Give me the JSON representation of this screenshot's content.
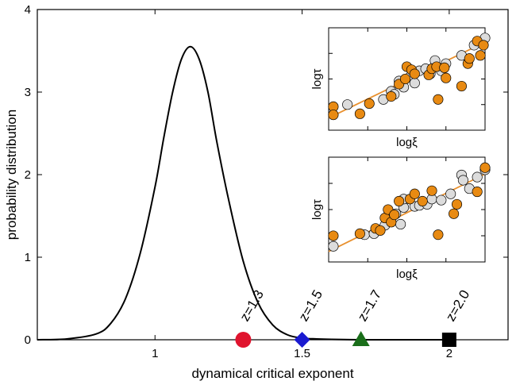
{
  "chart_data": {
    "type": "line",
    "xlabel": "dynamical critical exponent",
    "ylabel": "probability distribution",
    "xlim": [
      0.6,
      2.2
    ],
    "ylim": [
      0,
      4
    ],
    "x_ticks": [
      1,
      1.5,
      2
    ],
    "x_tick_labels": [
      "1",
      "1.5",
      "2"
    ],
    "y_ticks": [
      0,
      1,
      2,
      3,
      4
    ],
    "y_tick_labels": [
      "0",
      "1",
      "2",
      "3",
      "4"
    ],
    "grid": false,
    "series": [
      {
        "x": [
          0.6,
          0.7,
          0.8,
          0.85,
          0.9,
          0.95,
          1.0,
          1.03,
          1.06,
          1.09,
          1.12,
          1.15,
          1.18,
          1.21,
          1.25,
          1.3,
          1.35,
          1.4,
          1.45,
          1.5,
          1.55,
          1.6,
          1.7,
          1.8,
          1.9,
          2.0
        ],
        "y": [
          0.0,
          0.01,
          0.07,
          0.2,
          0.5,
          1.05,
          1.85,
          2.45,
          3.0,
          3.4,
          3.55,
          3.4,
          3.0,
          2.4,
          1.7,
          0.95,
          0.45,
          0.18,
          0.06,
          0.02,
          0.01,
          0.005,
          0.0,
          0.0,
          0.0,
          0.0
        ],
        "color": "#000000"
      }
    ],
    "markers": [
      {
        "label": "z=1.3",
        "x": 1.3,
        "y": 0,
        "shape": "circle",
        "color": "#e0142e"
      },
      {
        "label": "z=1.5",
        "x": 1.5,
        "y": 0,
        "shape": "diamond",
        "color": "#1a1ad0"
      },
      {
        "label": "z=1.7",
        "x": 1.7,
        "y": 0,
        "shape": "triangle",
        "color": "#1a6e1a"
      },
      {
        "label": "z=2.0",
        "x": 2.0,
        "y": 0,
        "shape": "square",
        "color": "#000000"
      }
    ],
    "insets": [
      {
        "type": "scatter",
        "xlabel": "logξ",
        "ylabel": "logτ",
        "xlim": [
          0,
          10
        ],
        "ylim": [
          0,
          10
        ],
        "fit_line": {
          "x": [
            0,
            10
          ],
          "y": [
            1.2,
            8.6
          ],
          "color": "#e8902e"
        },
        "gray_points": [
          [
            1.2,
            2.5
          ],
          [
            3.5,
            3.0
          ],
          [
            4.0,
            3.8
          ],
          [
            4.2,
            3.5
          ],
          [
            4.5,
            4.8
          ],
          [
            4.8,
            4.2
          ],
          [
            5.2,
            5.2
          ],
          [
            5.5,
            4.6
          ],
          [
            5.8,
            5.8
          ],
          [
            6.2,
            6.0
          ],
          [
            6.5,
            5.5
          ],
          [
            6.8,
            6.8
          ],
          [
            7.2,
            5.8
          ],
          [
            7.5,
            6.5
          ],
          [
            8.5,
            7.3
          ],
          [
            9.3,
            8.3
          ],
          [
            10.0,
            9.0
          ]
        ],
        "orange_points": [
          [
            0.3,
            2.3
          ],
          [
            0.3,
            1.5
          ],
          [
            2.0,
            1.6
          ],
          [
            2.6,
            2.6
          ],
          [
            4.0,
            3.3
          ],
          [
            4.5,
            4.5
          ],
          [
            4.9,
            5.0
          ],
          [
            5.0,
            6.2
          ],
          [
            5.3,
            5.9
          ],
          [
            5.5,
            5.5
          ],
          [
            6.4,
            5.4
          ],
          [
            6.6,
            6.0
          ],
          [
            6.9,
            6.2
          ],
          [
            7.4,
            6.1
          ],
          [
            7.5,
            5.1
          ],
          [
            8.5,
            4.3
          ],
          [
            8.9,
            6.5
          ],
          [
            9.0,
            7.0
          ],
          [
            9.7,
            7.3
          ],
          [
            7.0,
            3.0
          ],
          [
            9.5,
            8.7
          ],
          [
            9.9,
            8.3
          ]
        ]
      },
      {
        "type": "scatter",
        "xlabel": "logξ",
        "ylabel": "logτ",
        "xlim": [
          0,
          10
        ],
        "ylim": [
          0,
          10
        ],
        "fit_line": {
          "x": [
            0,
            10
          ],
          "y": [
            1.0,
            8.4
          ],
          "color": "#e8902e"
        },
        "gray_points": [
          [
            0.3,
            1.5
          ],
          [
            2.3,
            2.6
          ],
          [
            2.9,
            2.7
          ],
          [
            3.6,
            3.5
          ],
          [
            4.0,
            4.3
          ],
          [
            4.3,
            4.6
          ],
          [
            4.6,
            3.6
          ],
          [
            4.8,
            5.2
          ],
          [
            5.5,
            5.3
          ],
          [
            5.8,
            5.4
          ],
          [
            6.3,
            5.5
          ],
          [
            6.6,
            6.0
          ],
          [
            7.2,
            5.9
          ],
          [
            7.8,
            6.5
          ],
          [
            8.5,
            8.3
          ],
          [
            9.5,
            8.1
          ],
          [
            10.0,
            8.8
          ],
          [
            8.6,
            7.8
          ],
          [
            9.0,
            7.0
          ],
          [
            4.8,
            6.0
          ]
        ],
        "orange_points": [
          [
            0.3,
            2.5
          ],
          [
            2.0,
            2.7
          ],
          [
            3.0,
            3.2
          ],
          [
            3.3,
            3.0
          ],
          [
            3.6,
            4.2
          ],
          [
            3.8,
            5.0
          ],
          [
            4.0,
            3.8
          ],
          [
            4.2,
            4.5
          ],
          [
            4.5,
            5.8
          ],
          [
            5.2,
            6.0
          ],
          [
            5.5,
            6.5
          ],
          [
            6.0,
            5.8
          ],
          [
            6.6,
            6.8
          ],
          [
            7.0,
            2.6
          ],
          [
            8.0,
            4.6
          ],
          [
            8.2,
            5.5
          ],
          [
            9.5,
            6.7
          ],
          [
            10.0,
            9.0
          ]
        ]
      }
    ]
  }
}
